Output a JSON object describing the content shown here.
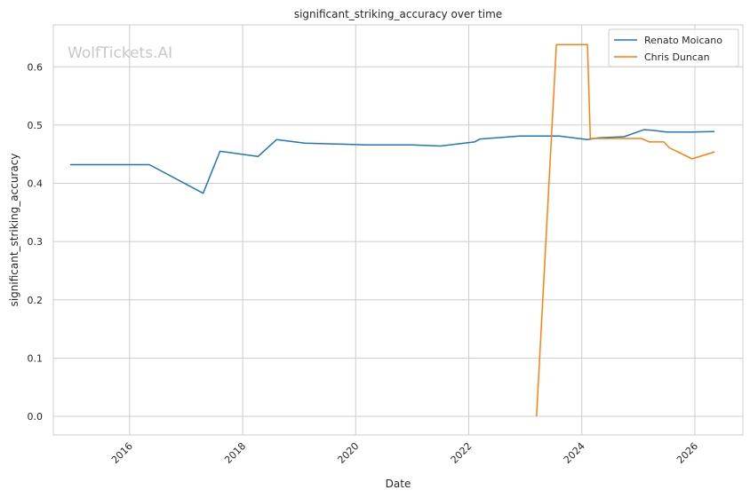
{
  "chart_data": {
    "type": "line",
    "title": "significant_striking_accuracy over time",
    "xlabel": "Date",
    "ylabel": "significant_striking_accuracy",
    "watermark": "WolfTickets.AI",
    "xlim": [
      2014.65,
      2026.85
    ],
    "ylim": [
      -0.032,
      0.672
    ],
    "x_ticks": [
      2016,
      2018,
      2020,
      2022,
      2024,
      2026
    ],
    "x_tick_labels": [
      "2016",
      "2018",
      "2020",
      "2022",
      "2024",
      "2026"
    ],
    "y_ticks": [
      0.0,
      0.1,
      0.2,
      0.3,
      0.4,
      0.5,
      0.6
    ],
    "y_tick_labels": [
      "0.0",
      "0.1",
      "0.2",
      "0.3",
      "0.4",
      "0.5",
      "0.6"
    ],
    "grid": true,
    "legend_position": "top-right",
    "series": [
      {
        "name": "Renato Moicano",
        "color": "#1f77b4",
        "x": [
          2014.95,
          2016.35,
          2017.3,
          2017.6,
          2018.27,
          2018.6,
          2019.1,
          2020.2,
          2021.0,
          2021.5,
          2022.1,
          2022.2,
          2022.9,
          2023.6,
          2024.1,
          2024.3,
          2024.75,
          2025.1,
          2025.25,
          2025.5,
          2025.95,
          2026.35
        ],
        "y": [
          0.432,
          0.432,
          0.383,
          0.455,
          0.446,
          0.475,
          0.469,
          0.466,
          0.466,
          0.464,
          0.471,
          0.476,
          0.481,
          0.481,
          0.475,
          0.478,
          0.48,
          0.492,
          0.491,
          0.488,
          0.488,
          0.489
        ]
      },
      {
        "name": "Chris Duncan",
        "color": "#ff7f0e",
        "x": [
          2023.2,
          2023.55,
          2024.1,
          2024.15,
          2024.3,
          2025.05,
          2025.2,
          2025.45,
          2025.55,
          2025.95,
          2026.35
        ],
        "y": [
          0.0,
          0.638,
          0.638,
          0.477,
          0.477,
          0.477,
          0.471,
          0.471,
          0.461,
          0.442,
          0.454
        ]
      }
    ]
  }
}
